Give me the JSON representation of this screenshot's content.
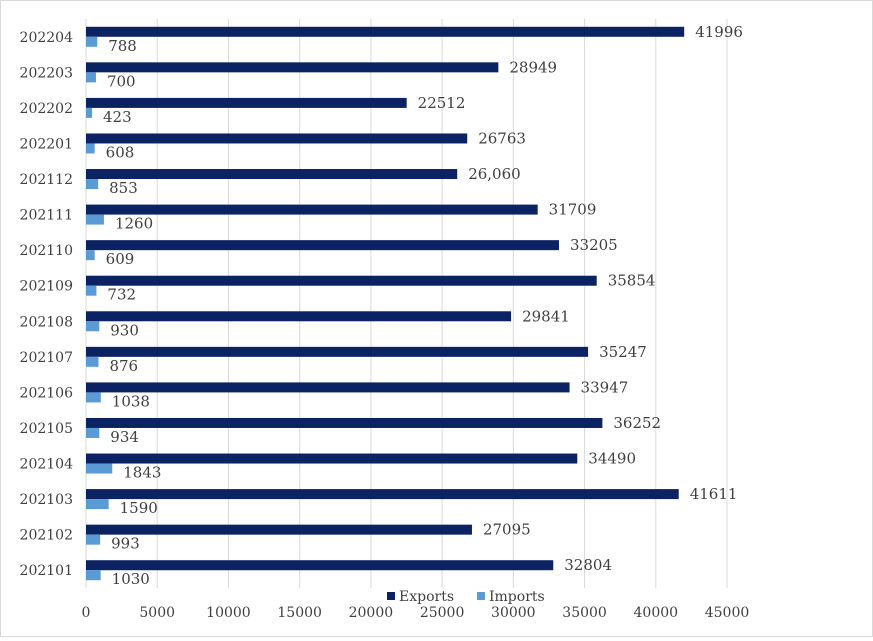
{
  "chart_data": {
    "type": "bar",
    "orientation": "horizontal",
    "title": "",
    "xlabel": "",
    "ylabel": "",
    "xlim": [
      0,
      45000
    ],
    "x_ticks": [
      0,
      5000,
      10000,
      15000,
      20000,
      25000,
      30000,
      35000,
      40000,
      45000
    ],
    "grid": "vertical",
    "legend_position": "bottom-right",
    "categories": [
      "202101",
      "202102",
      "202103",
      "202104",
      "202105",
      "202106",
      "202107",
      "202108",
      "202109",
      "202110",
      "202111",
      "202112",
      "202201",
      "202202",
      "202203",
      "202204"
    ],
    "series": [
      {
        "name": "Exports",
        "color": "#0b2263",
        "values": [
          32804,
          27095,
          41611,
          34490,
          36252,
          33947,
          35247,
          29841,
          35854,
          33205,
          31709,
          26060,
          26763,
          22512,
          28949,
          41996
        ],
        "labels": [
          "32804",
          "27095",
          "41611",
          "34490",
          "36252",
          "33947",
          "35247",
          "29841",
          "35854",
          "33205",
          "31709",
          "26,060",
          "26763",
          "22512",
          "28949",
          "41996"
        ]
      },
      {
        "name": "Imports",
        "color": "#5b9bd5",
        "values": [
          1030,
          993,
          1590,
          1843,
          934,
          1038,
          876,
          930,
          732,
          609,
          1260,
          853,
          608,
          423,
          700,
          788
        ],
        "labels": [
          "1030",
          "993",
          "1590",
          "1843",
          "934",
          "1038",
          "876",
          "930",
          "732",
          "609",
          "1260",
          "853",
          "608",
          "423",
          "700",
          "788"
        ]
      }
    ]
  }
}
